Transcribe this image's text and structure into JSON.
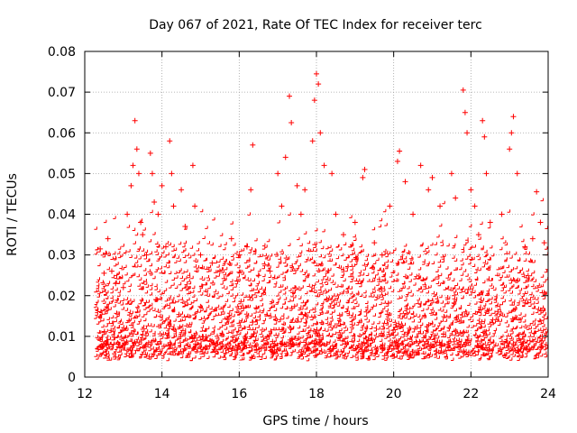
{
  "chart_data": {
    "type": "scatter",
    "title": "Day 067 of 2021, Rate Of TEC Index for receiver terc",
    "xlabel": "GPS time / hours",
    "ylabel": "ROTI / TECUs",
    "xlim": [
      12,
      24
    ],
    "ylim": [
      0,
      0.08
    ],
    "x_ticks": [
      12,
      14,
      16,
      18,
      20,
      22,
      24
    ],
    "y_ticks": [
      0,
      0.01,
      0.02,
      0.03,
      0.04,
      0.05,
      0.06,
      0.07,
      0.08
    ],
    "x_tick_labels": [
      "12",
      "14",
      "16",
      "18",
      "20",
      "22",
      "24"
    ],
    "y_tick_labels": [
      "0",
      "0.01",
      "0.02",
      "0.03",
      "0.04",
      "0.05",
      "0.06",
      "0.07",
      "0.08"
    ],
    "grid": true,
    "legend": "none",
    "marker": "plus",
    "color": "#ff0000",
    "series": [
      {
        "values_summary": "dense cloud of ROTI samples from 12.3 h to 24 h",
        "points": [
          [
            12.4,
            0.0315
          ],
          [
            12.5,
            0.0255
          ],
          [
            12.6,
            0.034
          ],
          [
            12.7,
            0.026
          ],
          [
            12.8,
            0.023
          ],
          [
            13.0,
            0.022
          ],
          [
            13.1,
            0.04
          ],
          [
            13.2,
            0.047
          ],
          [
            13.25,
            0.052
          ],
          [
            13.3,
            0.063
          ],
          [
            13.35,
            0.056
          ],
          [
            13.4,
            0.05
          ],
          [
            13.45,
            0.038
          ],
          [
            13.5,
            0.035
          ],
          [
            13.6,
            0.03
          ],
          [
            13.7,
            0.055
          ],
          [
            13.75,
            0.05
          ],
          [
            13.8,
            0.043
          ],
          [
            13.9,
            0.04
          ],
          [
            14.0,
            0.047
          ],
          [
            14.1,
            0.032
          ],
          [
            14.2,
            0.058
          ],
          [
            14.25,
            0.05
          ],
          [
            14.3,
            0.042
          ],
          [
            14.5,
            0.046
          ],
          [
            14.6,
            0.037
          ],
          [
            14.8,
            0.052
          ],
          [
            14.85,
            0.042
          ],
          [
            15.0,
            0.03
          ],
          [
            15.3,
            0.028
          ],
          [
            15.5,
            0.026
          ],
          [
            15.8,
            0.034
          ],
          [
            16.0,
            0.03
          ],
          [
            16.2,
            0.032
          ],
          [
            16.3,
            0.046
          ],
          [
            16.35,
            0.057
          ],
          [
            16.5,
            0.025
          ],
          [
            16.8,
            0.026
          ],
          [
            17.0,
            0.05
          ],
          [
            17.1,
            0.042
          ],
          [
            17.2,
            0.054
          ],
          [
            17.3,
            0.069
          ],
          [
            17.35,
            0.0625
          ],
          [
            17.5,
            0.047
          ],
          [
            17.6,
            0.04
          ],
          [
            17.7,
            0.046
          ],
          [
            17.9,
            0.058
          ],
          [
            17.95,
            0.068
          ],
          [
            18.0,
            0.0745
          ],
          [
            18.05,
            0.072
          ],
          [
            18.1,
            0.06
          ],
          [
            18.2,
            0.052
          ],
          [
            18.4,
            0.05
          ],
          [
            18.5,
            0.04
          ],
          [
            18.7,
            0.035
          ],
          [
            19.0,
            0.038
          ],
          [
            19.2,
            0.049
          ],
          [
            19.25,
            0.051
          ],
          [
            19.5,
            0.033
          ],
          [
            19.7,
            0.03
          ],
          [
            19.9,
            0.042
          ],
          [
            20.1,
            0.053
          ],
          [
            20.15,
            0.0555
          ],
          [
            20.3,
            0.048
          ],
          [
            20.5,
            0.04
          ],
          [
            20.7,
            0.052
          ],
          [
            20.9,
            0.046
          ],
          [
            21.0,
            0.049
          ],
          [
            21.2,
            0.042
          ],
          [
            21.5,
            0.05
          ],
          [
            21.6,
            0.044
          ],
          [
            21.8,
            0.0705
          ],
          [
            21.85,
            0.065
          ],
          [
            21.9,
            0.06
          ],
          [
            22.0,
            0.046
          ],
          [
            22.1,
            0.042
          ],
          [
            22.2,
            0.035
          ],
          [
            22.3,
            0.063
          ],
          [
            22.35,
            0.059
          ],
          [
            22.4,
            0.05
          ],
          [
            22.5,
            0.038
          ],
          [
            22.8,
            0.04
          ],
          [
            23.0,
            0.056
          ],
          [
            23.05,
            0.06
          ],
          [
            23.1,
            0.064
          ],
          [
            23.2,
            0.05
          ],
          [
            23.4,
            0.032
          ],
          [
            23.6,
            0.034
          ],
          [
            23.7,
            0.0455
          ],
          [
            23.8,
            0.038
          ],
          [
            23.9,
            0.033
          ]
        ]
      }
    ]
  }
}
